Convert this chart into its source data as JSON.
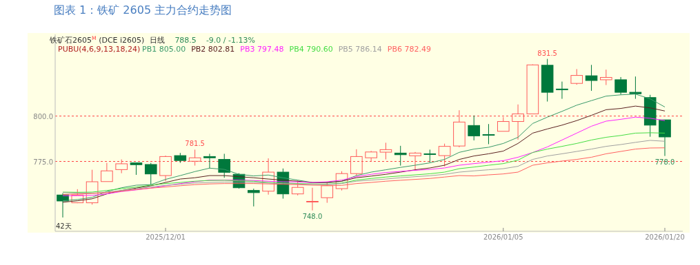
{
  "chart_data": {
    "type": "candlestick",
    "title": "图表 1：铁矿 2605 主力合约走势图",
    "subtitle": "铁矿石2605$^{M}$ (DCE i2605)",
    "annotations": [
      "日线",
      "788.5",
      "-9.0 / -1.13%",
      "PUBU(4,6,9,13,18,24)",
      "42天",
      {
        "text": "831.5",
        "y": 831.5
      },
      {
        "text": "781.5",
        "y": 781.5
      },
      {
        "text": "748.0",
        "y": 748.0
      },
      {
        "text": "778.0",
        "y": 778.0
      }
    ],
    "categories": [
      null,
      null,
      null,
      null,
      null,
      null,
      null,
      "2025/12/01",
      null,
      null,
      null,
      null,
      null,
      null,
      null,
      null,
      null,
      null,
      null,
      null,
      null,
      null,
      null,
      null,
      null,
      null,
      null,
      null,
      null,
      null,
      "2026/01/05",
      null,
      null,
      null,
      null,
      null,
      null,
      null,
      null,
      null,
      null,
      "2026/01/20"
    ],
    "ohlc": [
      [
        756.5,
        757.5,
        744.1,
        753.2
      ],
      [
        752.2,
        759.7,
        752.0,
        756.5
      ],
      [
        752.2,
        770.4,
        751.2,
        763.8
      ],
      [
        763.9,
        774.2,
        763.9,
        769.8
      ],
      [
        770.5,
        776.1,
        768.5,
        773.7
      ],
      [
        774.2,
        774.2,
        767.6,
        773.2
      ],
      [
        773.3,
        774.2,
        762.2,
        768.1
      ],
      [
        767.2,
        778.2,
        764.1,
        777.7
      ],
      [
        778.2,
        779.7,
        774.2,
        775.5
      ],
      [
        775.1,
        781.5,
        772.7,
        777.0
      ],
      [
        777.7,
        779.2,
        771.0,
        777.0
      ],
      [
        776.1,
        779.2,
        766.0,
        769.0
      ],
      [
        767.9,
        768.5,
        760.0,
        760.5
      ],
      [
        759.0,
        760.0,
        750.2,
        757.8
      ],
      [
        758.6,
        776.7,
        756.7,
        769.1
      ],
      [
        769.1,
        771.1,
        754.5,
        757.1
      ],
      [
        757.1,
        764.5,
        756.3,
        760.7
      ],
      [
        753.0,
        760.5,
        748.0,
        753.0
      ],
      [
        755.0,
        763.8,
        752.2,
        761.6
      ],
      [
        760.0,
        769.6,
        759.0,
        768.3
      ],
      [
        768.3,
        781.7,
        767.2,
        777.7
      ],
      [
        777.0,
        780.8,
        774.8,
        780.2
      ],
      [
        780.1,
        785.3,
        776.1,
        781.5
      ],
      [
        779.6,
        783.6,
        772.7,
        778.7
      ],
      [
        778.1,
        780.2,
        770.4,
        779.6
      ],
      [
        779.2,
        781.5,
        774.5,
        779.0
      ],
      [
        778.2,
        784.8,
        772.3,
        783.3
      ],
      [
        783.5,
        803.2,
        782.8,
        796.7
      ],
      [
        794.8,
        800.3,
        786.6,
        789.1
      ],
      [
        789.8,
        795.6,
        784.5,
        789.7
      ],
      [
        791.6,
        799.4,
        791.6,
        797.0
      ],
      [
        797.0,
        806.4,
        787.0,
        801.2
      ],
      [
        801.2,
        828.5,
        801.2,
        828.2
      ],
      [
        828.0,
        831.5,
        808.0,
        813.1
      ],
      [
        814.9,
        819.0,
        809.5,
        814.8
      ],
      [
        818.0,
        825.9,
        817.3,
        822.4
      ],
      [
        822.2,
        828.2,
        813.9,
        819.6
      ],
      [
        820.0,
        825.6,
        817.1,
        821.3
      ],
      [
        820.0,
        821.5,
        811.8,
        813.1
      ],
      [
        813.1,
        821.8,
        809.5,
        812.3
      ],
      [
        810.2,
        811.7,
        788.6,
        795.0
      ],
      [
        797.9,
        797.9,
        778.0,
        788.5
      ]
    ],
    "colors": [
      "#00783c",
      "#ff5a5a",
      "#ff5a5a",
      "#ff5a5a",
      "#ff5a5a",
      "#00783c",
      "#00783c",
      "#ff5a5a",
      "#00783c",
      "#ff5a5a",
      "#00783c",
      "#00783c",
      "#00783c",
      "#00783c",
      "#ff5a5a",
      "#00783c",
      "#ff5a5a",
      "#ff5a5a",
      "#ff5a5a",
      "#ff5a5a",
      "#ff5a5a",
      "#ff5a5a",
      "#ff5a5a",
      "#00783c",
      "#ff5a5a",
      "#00783c",
      "#ff5a5a",
      "#ff5a5a",
      "#00783c",
      "#00783c",
      "#ff5a5a",
      "#ff5a5a",
      "#ff5a5a",
      "#00783c",
      "#00783c",
      "#ff5a5a",
      "#00783c",
      "#ff5a5a",
      "#00783c",
      "#00783c",
      "#00783c",
      "#00783c"
    ],
    "series": [
      {
        "name": "PB1 805.00",
        "type": "line",
        "color": "#3a9a6a",
        "values": [
          753.3,
          754.0,
          755.2,
          758.4,
          760.5,
          761.9,
          762.2,
          765.1,
          767.2,
          769.4,
          771.3,
          770.6,
          767.9,
          767.0,
          767.5,
          766.0,
          764.7,
          763.4,
          763.2,
          764.1,
          767.2,
          769.1,
          770.4,
          771.7,
          772.9,
          774.2,
          776.1,
          780.0,
          781.8,
          782.8,
          784.9,
          788.3,
          795.9,
          799.4,
          802.6,
          806.0,
          808.5,
          811.0,
          811.7,
          812.1,
          809.5,
          805.0
        ]
      },
      {
        "name": "PB2 802.81",
        "type": "line",
        "color": "#5a2020",
        "values": [
          752.5,
          753.3,
          754.4,
          757.1,
          759.0,
          760.3,
          761.6,
          763.4,
          765.3,
          766.0,
          767.2,
          767.2,
          766.6,
          766.0,
          765.3,
          764.7,
          764.1,
          763.3,
          763.4,
          764.1,
          766.0,
          766.9,
          767.9,
          769.1,
          770.4,
          771.4,
          772.9,
          776.1,
          778.0,
          779.2,
          780.7,
          784.9,
          790.6,
          792.9,
          795.0,
          797.5,
          800.4,
          803.5,
          804.2,
          805.5,
          804.5,
          802.8
        ]
      },
      {
        "name": "PB3 797.48",
        "type": "line",
        "color": "#ff22ff",
        "values": [
          756.1,
          756.1,
          756.3,
          757.1,
          758.4,
          759.3,
          760.3,
          761.6,
          762.8,
          763.8,
          764.7,
          764.7,
          764.7,
          764.5,
          764.1,
          763.8,
          763.7,
          763.4,
          763.8,
          764.7,
          766.6,
          767.9,
          768.9,
          769.5,
          770.1,
          770.6,
          771.4,
          772.9,
          773.8,
          774.6,
          775.4,
          777.3,
          779.9,
          783.0,
          786.8,
          790.6,
          794.4,
          797.2,
          798.2,
          799.4,
          798.8,
          797.5
        ]
      },
      {
        "name": "PB4 790.60",
        "type": "line",
        "color": "#44dd44",
        "values": [
          758.1,
          758.0,
          758.1,
          759.0,
          760.0,
          760.9,
          761.9,
          762.8,
          763.4,
          764.1,
          764.5,
          764.6,
          764.3,
          764.1,
          763.4,
          763.1,
          762.8,
          762.6,
          762.4,
          763.1,
          764.7,
          765.6,
          766.4,
          767.0,
          767.6,
          768.2,
          769.1,
          771.0,
          771.9,
          772.9,
          773.8,
          775.7,
          779.9,
          781.8,
          783.3,
          784.9,
          786.8,
          788.3,
          789.3,
          790.6,
          790.8,
          790.6
        ]
      },
      {
        "name": "PB5 786.14",
        "type": "line",
        "color": "#a0a0a0",
        "values": [
          757.8,
          757.5,
          757.5,
          758.1,
          759.0,
          759.9,
          760.9,
          761.8,
          762.4,
          763.1,
          763.4,
          763.6,
          763.6,
          763.4,
          763.1,
          762.8,
          762.6,
          762.4,
          762.3,
          762.8,
          764.1,
          764.7,
          765.3,
          766.0,
          766.6,
          767.1,
          767.9,
          769.1,
          769.8,
          770.4,
          771.0,
          772.3,
          776.1,
          778.0,
          779.2,
          780.5,
          781.8,
          783.3,
          784.3,
          785.5,
          786.6,
          786.1
        ]
      },
      {
        "name": "PB6 782.49",
        "type": "line",
        "color": "#ff6060",
        "values": [
          756.8,
          757.0,
          757.3,
          757.8,
          758.6,
          759.5,
          760.3,
          760.9,
          761.6,
          762.2,
          762.6,
          762.8,
          762.8,
          762.8,
          762.6,
          762.4,
          762.2,
          761.9,
          761.8,
          761.8,
          762.8,
          763.4,
          764.1,
          764.6,
          765.1,
          765.6,
          766.4,
          767.2,
          767.0,
          767.6,
          768.1,
          769.1,
          772.9,
          774.2,
          775.2,
          776.1,
          777.3,
          779.2,
          780.5,
          781.8,
          782.4,
          782.5
        ]
      }
    ],
    "ylim": [
      736.5,
      845
    ],
    "yticks": [
      {
        "value": 800,
        "label": "800.0"
      },
      {
        "value": 775,
        "label": "775.0"
      }
    ],
    "grid": "y",
    "legend": "top left"
  }
}
